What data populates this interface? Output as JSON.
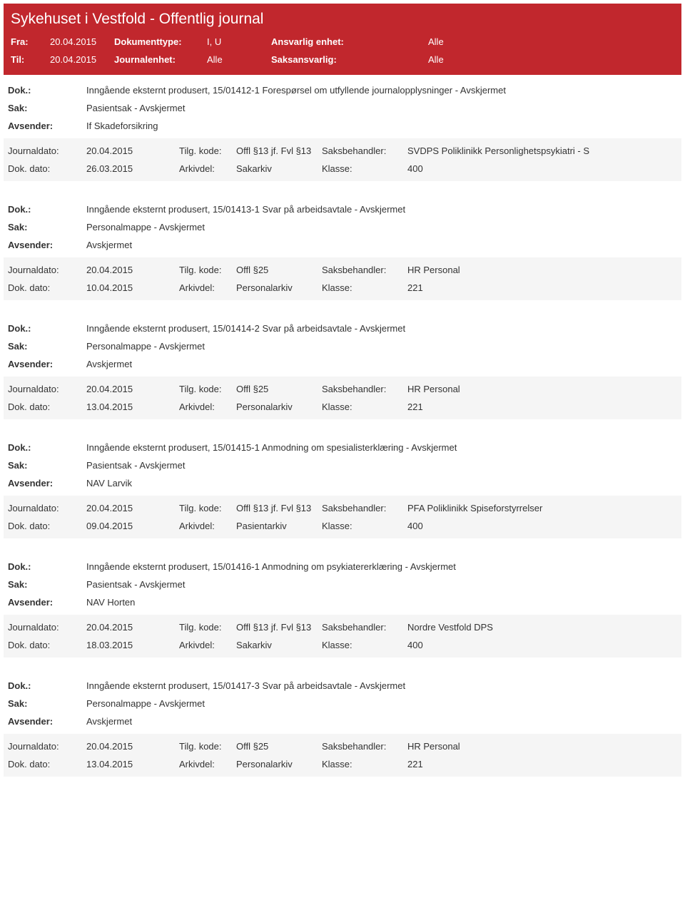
{
  "colors": {
    "header_bg": "#c1272d",
    "header_text": "#ffffff",
    "meta_bg": "#f5f5f5",
    "body_text": "#333333"
  },
  "header": {
    "title": "Sykehuset i Vestfold - Offentlig journal",
    "fra_label": "Fra:",
    "fra_value": "20.04.2015",
    "til_label": "Til:",
    "til_value": "20.04.2015",
    "dokumenttype_label": "Dokumenttype:",
    "dokumenttype_value": "I, U",
    "journalenhet_label": "Journalenhet:",
    "journalenhet_value": "Alle",
    "ansvarlig_label": "Ansvarlig enhet:",
    "ansvarlig_value": "Alle",
    "saksansvarlig_label": "Saksansvarlig:",
    "saksansvarlig_value": "Alle"
  },
  "labels": {
    "dok": "Dok.:",
    "sak": "Sak:",
    "avsender": "Avsender:",
    "journaldato": "Journaldato:",
    "dokdato": "Dok. dato:",
    "tilgkode": "Tilg. kode:",
    "arkivdel": "Arkivdel:",
    "saksbehandler": "Saksbehandler:",
    "klasse": "Klasse:"
  },
  "entries": [
    {
      "dok": "Inngående eksternt produsert, 15/01412-1 Forespørsel om utfyllende journalopplysninger - Avskjermet",
      "sak": "Pasientsak - Avskjermet",
      "avsender": "If Skadeforsikring",
      "journaldato": "20.04.2015",
      "tilgkode": "Offl §13 jf. Fvl §13",
      "saksbehandler": "SVDPS Poliklinikk Personlighetspsykiatri - S",
      "dokdato": "26.03.2015",
      "arkivdel": "Sakarkiv",
      "klasse": "400"
    },
    {
      "dok": "Inngående eksternt produsert, 15/01413-1 Svar på arbeidsavtale - Avskjermet",
      "sak": "Personalmappe - Avskjermet",
      "avsender": "Avskjermet",
      "journaldato": "20.04.2015",
      "tilgkode": "Offl §25",
      "saksbehandler": "HR Personal",
      "dokdato": "10.04.2015",
      "arkivdel": "Personalarkiv",
      "klasse": "221"
    },
    {
      "dok": "Inngående eksternt produsert, 15/01414-2 Svar på arbeidsavtale - Avskjermet",
      "sak": "Personalmappe - Avskjermet",
      "avsender": "Avskjermet",
      "journaldato": "20.04.2015",
      "tilgkode": "Offl §25",
      "saksbehandler": "HR Personal",
      "dokdato": "13.04.2015",
      "arkivdel": "Personalarkiv",
      "klasse": "221"
    },
    {
      "dok": "Inngående eksternt produsert, 15/01415-1 Anmodning om spesialisterklæring - Avskjermet",
      "sak": "Pasientsak - Avskjermet",
      "avsender": "NAV Larvik",
      "journaldato": "20.04.2015",
      "tilgkode": "Offl §13 jf. Fvl §13",
      "saksbehandler": "PFA Poliklinikk Spiseforstyrrelser",
      "dokdato": "09.04.2015",
      "arkivdel": "Pasientarkiv",
      "klasse": "400"
    },
    {
      "dok": "Inngående eksternt produsert, 15/01416-1 Anmodning om psykiatererklæring - Avskjermet",
      "sak": "Pasientsak - Avskjermet",
      "avsender": "NAV Horten",
      "journaldato": "20.04.2015",
      "tilgkode": "Offl §13 jf. Fvl §13",
      "saksbehandler": "Nordre Vestfold DPS",
      "dokdato": "18.03.2015",
      "arkivdel": "Sakarkiv",
      "klasse": "400"
    },
    {
      "dok": "Inngående eksternt produsert, 15/01417-3 Svar på arbeidsavtale - Avskjermet",
      "sak": "Personalmappe - Avskjermet",
      "avsender": "Avskjermet",
      "journaldato": "20.04.2015",
      "tilgkode": "Offl §25",
      "saksbehandler": "HR Personal",
      "dokdato": "13.04.2015",
      "arkivdel": "Personalarkiv",
      "klasse": "221"
    }
  ]
}
